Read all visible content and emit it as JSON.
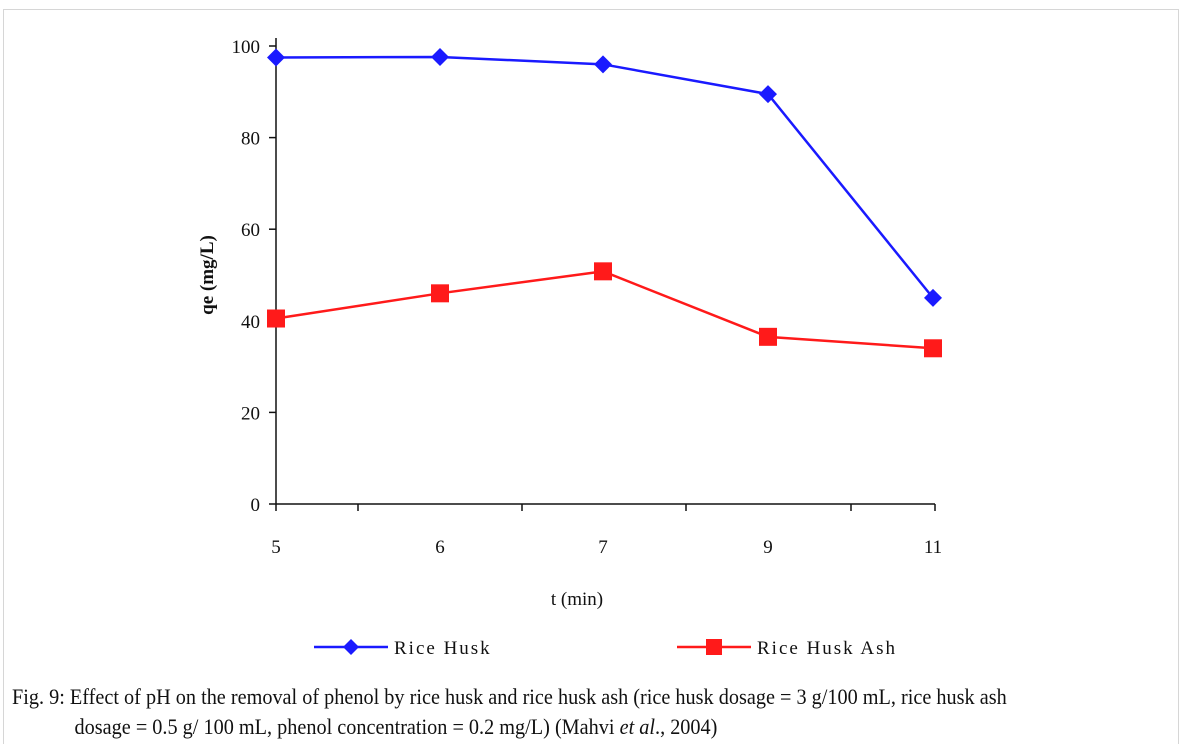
{
  "chart_data": {
    "type": "line",
    "categories": [
      "5",
      "6",
      "7",
      "9",
      "11"
    ],
    "xlabel": "t (min)",
    "ylabel": "qe (mg/L)",
    "ylim": [
      0,
      100
    ],
    "yticks": [
      "0",
      "20",
      "40",
      "60",
      "80",
      "100"
    ],
    "grid": false,
    "legend_position": "bottom",
    "series": [
      {
        "name": "Rice Husk",
        "color": "#1a1aff",
        "marker": "diamond",
        "values": [
          97.5,
          97.6,
          96.0,
          89.5,
          45.0
        ]
      },
      {
        "name": "Rice Husk Ash",
        "color": "#ff1a1a",
        "marker": "square",
        "values": [
          40.5,
          46.0,
          50.8,
          36.5,
          34.0
        ]
      }
    ]
  },
  "caption": {
    "line1": "Fig. 9: Effect of pH on the removal of phenol by rice husk and rice husk ash (rice husk dosage = 3 g/100 mL, rice husk ash",
    "line2_pre": "dosage = 0.5 g/ 100 mL, phenol concentration = 0.2 mg/L) (Mahvi ",
    "line2_em": "et al",
    "line2_post": "., 2004)"
  }
}
